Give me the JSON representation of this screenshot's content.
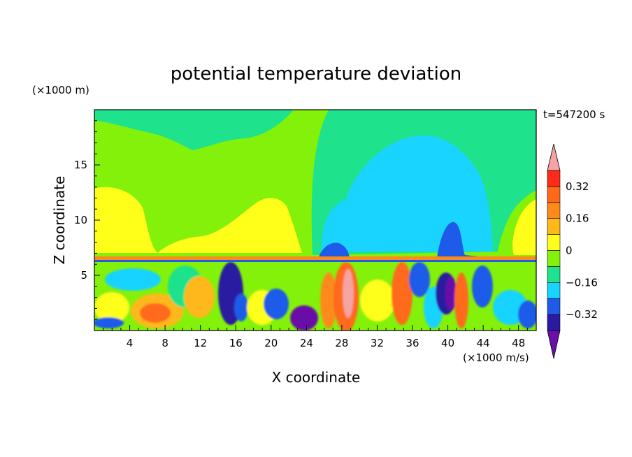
{
  "chart_data": {
    "type": "heatmap",
    "title": "potential temperature deviation",
    "time_label": "t=547200 s",
    "xlabel": "X coordinate",
    "ylabel": "Z coordinate",
    "x_unit": "(×1000 m/s)",
    "y_unit": "(×1000 m)",
    "xlim": [
      0,
      50
    ],
    "ylim": [
      0,
      20
    ],
    "x_ticks": [
      "4",
      "8",
      "12",
      "16",
      "20",
      "24",
      "28",
      "32",
      "36",
      "40",
      "44",
      "48"
    ],
    "y_ticks": [
      "5",
      "10",
      "15"
    ],
    "colorbar": {
      "tick_labels": [
        "0.32",
        "0.16",
        "0",
        "−0.16",
        "−0.32"
      ],
      "levels": [
        -0.4,
        -0.32,
        -0.24,
        -0.16,
        -0.08,
        0,
        0.08,
        0.16,
        0.24,
        0.32,
        0.4
      ],
      "colors": [
        "#6a0fa8",
        "#2a1aa0",
        "#1e5be8",
        "#19d4ff",
        "#1ee28c",
        "#84f10a",
        "#ffff1a",
        "#ffb81a",
        "#ff8a1a",
        "#ff6a1a",
        "#ff2a1a",
        "#f5a3a3"
      ],
      "extends": "both"
    },
    "field_regions": {
      "upper_layer": "z 6.5 to 20: mostly 0 to 0.08 with +0.08 to 0.16 lobes near x 0-12, 12-24 and 45-50, negative -0.16 to 0 region near x 24-45, a -0.16 to -0.08 core near x 30-42",
      "interface": "z about 6.5: thin band of strong positive/negative alternation",
      "lower_layer": "z 0 to 6.5: turbulent alternating anomalies; strong positive columns near x 28 and 33, strong negative columns near x 14, 39-40"
    }
  }
}
